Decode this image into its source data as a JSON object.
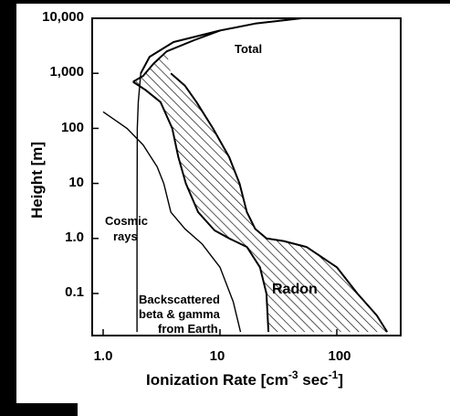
{
  "chart_data": {
    "type": "line",
    "xscale": "log",
    "yscale": "log",
    "xlim": [
      1,
      300
    ],
    "ylim": [
      0.02,
      10000
    ],
    "grid": false,
    "ylabel": "Height [m]",
    "xlabel_parts": {
      "main": "Ionization Rate [cm",
      "exp1": "-3",
      "mid": " sec",
      "exp2": "-1",
      "end": "]"
    },
    "xticks": [
      {
        "value": 1,
        "label": "1.0"
      },
      {
        "value": 10,
        "label": "10"
      },
      {
        "value": 100,
        "label": "100"
      }
    ],
    "yticks": [
      {
        "value": 10000,
        "label": "10,000"
      },
      {
        "value": 1000,
        "label": "1,000"
      },
      {
        "value": 100,
        "label": "100"
      },
      {
        "value": 10,
        "label": "10"
      },
      {
        "value": 1,
        "label": "1.0"
      },
      {
        "value": 0.1,
        "label": "0.1"
      }
    ],
    "annotations": {
      "total": "Total",
      "cosmic": [
        "Cosmic",
        "rays"
      ],
      "radon": "Radon",
      "backscatter": [
        "Backscattered",
        "beta & gamma",
        "from Earth"
      ]
    },
    "series": [
      {
        "key": "cosmic",
        "points": [
          [
            1.95,
            0.02
          ],
          [
            1.95,
            1
          ],
          [
            1.96,
            100
          ],
          [
            2.0,
            300
          ],
          [
            2.1,
            1000
          ],
          [
            2.5,
            2000
          ],
          [
            4,
            3700
          ],
          [
            10,
            6000
          ],
          [
            20,
            8000
          ],
          [
            50,
            10000
          ]
        ]
      },
      {
        "key": "backscatter",
        "points": [
          [
            1,
            200
          ],
          [
            1.6,
            100
          ],
          [
            2.2,
            50
          ],
          [
            2.9,
            20
          ],
          [
            3.3,
            10
          ],
          [
            3.8,
            3
          ],
          [
            5,
            1.5
          ],
          [
            7,
            0.8
          ],
          [
            10,
            0.3
          ],
          [
            13,
            0.07
          ],
          [
            15,
            0.02
          ]
        ]
      },
      {
        "key": "total_low",
        "points": [
          [
            1.8,
            700
          ],
          [
            2.3,
            500
          ],
          [
            3.1,
            300
          ],
          [
            3.9,
            100
          ],
          [
            4.4,
            30
          ],
          [
            5.1,
            10
          ],
          [
            6.5,
            3
          ],
          [
            9,
            1.4
          ],
          [
            12,
            1
          ],
          [
            17,
            0.7
          ],
          [
            22,
            0.3
          ],
          [
            25,
            0.1
          ],
          [
            26,
            0.02
          ]
        ]
      },
      {
        "key": "total_high",
        "points": [
          [
            2.1,
            1000
          ],
          [
            2.5,
            2000
          ],
          [
            4,
            3700
          ],
          [
            10,
            6000
          ],
          [
            20,
            8000
          ],
          [
            50,
            10000
          ]
        ]
      },
      {
        "key": "radon_upper",
        "points": [
          [
            1.8,
            700
          ],
          [
            2.2,
            900
          ],
          [
            2.7,
            1500
          ],
          [
            3.5,
            2500
          ],
          [
            6,
            4000
          ],
          [
            10,
            6000
          ]
        ]
      },
      {
        "key": "radon_right",
        "points": [
          [
            3.8,
            1000
          ],
          [
            5,
            600
          ],
          [
            6.3,
            300
          ],
          [
            8.7,
            100
          ],
          [
            12,
            30
          ],
          [
            14.7,
            10
          ],
          [
            17,
            3
          ],
          [
            20,
            1.5
          ],
          [
            25,
            1
          ],
          [
            35,
            0.9
          ],
          [
            55,
            0.7
          ],
          [
            100,
            0.3
          ],
          [
            150,
            0.1
          ],
          [
            220,
            0.04
          ],
          [
            270,
            0.02
          ]
        ]
      }
    ]
  }
}
